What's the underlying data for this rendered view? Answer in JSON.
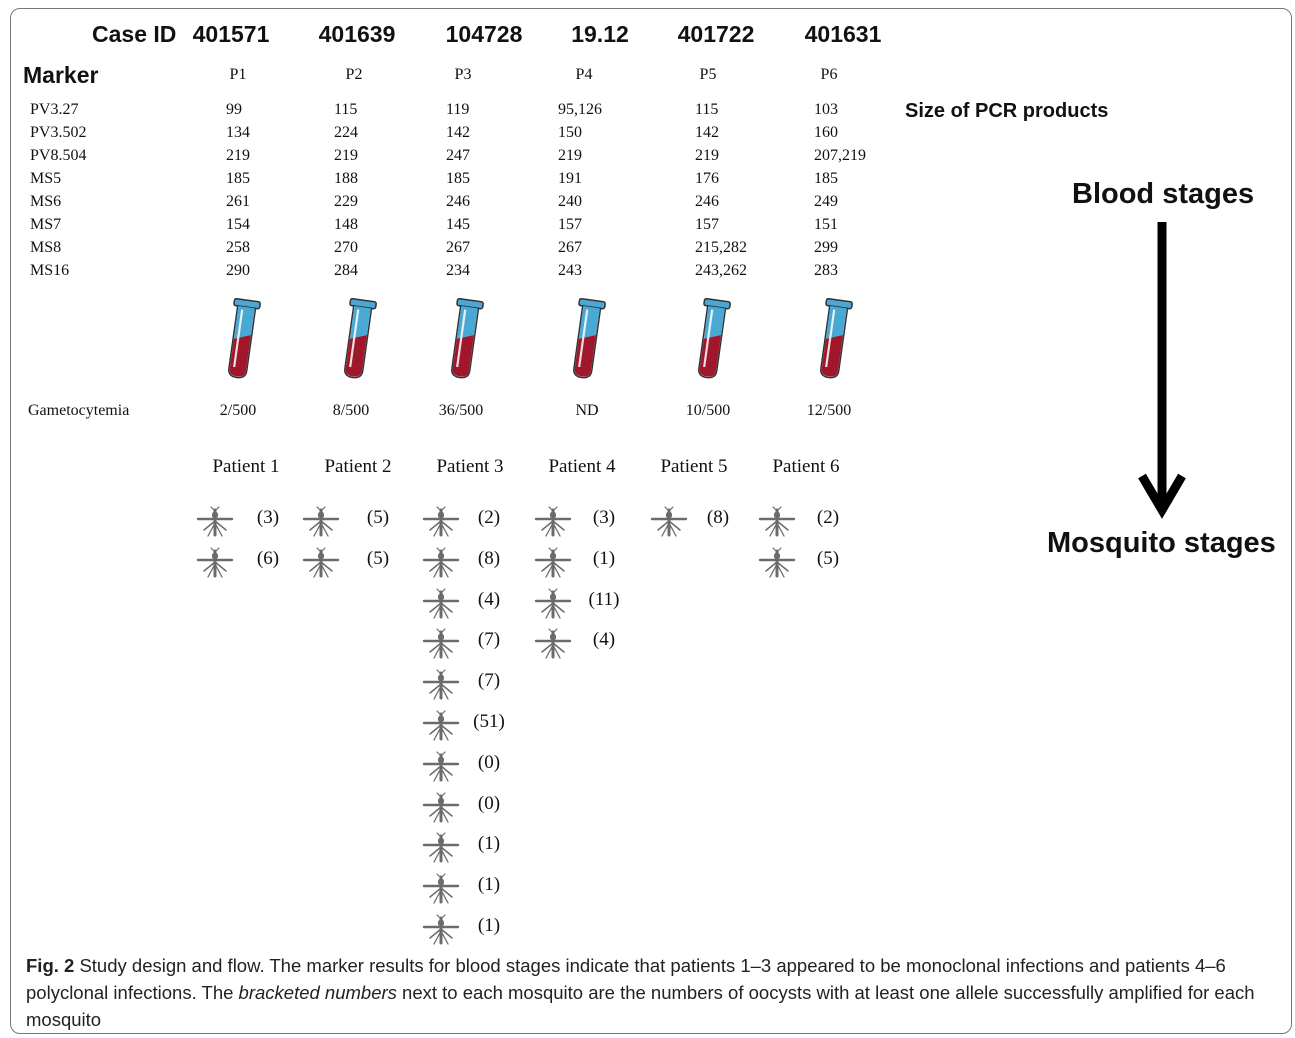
{
  "header": {
    "case_id_label": "Case ID",
    "case_ids": [
      "401571",
      "401639",
      "104728",
      "19.12",
      "401722",
      "401631"
    ],
    "marker_label": "Marker",
    "patient_codes": [
      "P1",
      "P2",
      "P3",
      "P4",
      "P5",
      "P6"
    ]
  },
  "markers": {
    "names": [
      "PV3.27",
      "PV3.502",
      "PV8.504",
      "MS5",
      "MS6",
      "MS7",
      "MS8",
      "MS16"
    ],
    "values": [
      [
        "99",
        "115",
        "119",
        "95,126",
        "115",
        "103"
      ],
      [
        "134",
        "224",
        "142",
        "150",
        "142",
        "160"
      ],
      [
        "219",
        "219",
        "247",
        "219",
        "219",
        "207,219"
      ],
      [
        "185",
        "188",
        "185",
        "191",
        "176",
        "185"
      ],
      [
        "261",
        "229",
        "246",
        "240",
        "246",
        "249"
      ],
      [
        "154",
        "148",
        "145",
        "157",
        "157",
        "151"
      ],
      [
        "258",
        "270",
        "267",
        "267",
        "215,282",
        "299"
      ],
      [
        "290",
        "284",
        "234",
        "243",
        "243,262",
        "283"
      ]
    ],
    "pcr_label": "Size of PCR products"
  },
  "stages": {
    "blood": "Blood stages",
    "mosquito": "Mosquito stages"
  },
  "gametocytemia": {
    "label": "Gametocytemia",
    "values": [
      "2/500",
      "8/500",
      "36/500",
      "ND",
      "10/500",
      "12/500"
    ]
  },
  "patients": {
    "labels": [
      "Patient 1",
      "Patient 2",
      "Patient 3",
      "Patient 4",
      "Patient 5",
      "Patient 6"
    ],
    "mosquito_counts": [
      [
        "(3)",
        "(6)"
      ],
      [
        "(5)",
        "(5)"
      ],
      [
        "(2)",
        "(8)",
        "(4)",
        "(7)",
        "(7)",
        "(51)",
        "(0)",
        "(0)",
        "(1)",
        "(1)",
        "(1)"
      ],
      [
        "(3)",
        "(1)",
        "(11)",
        "(4)"
      ],
      [
        "(8)"
      ],
      [
        "(2)",
        "(5)"
      ]
    ]
  },
  "caption": {
    "fig_label": "Fig. 2",
    "text_1": " Study design and flow. The marker results for blood stages indicate that patients 1–3 appeared to be monoclonal infections and patients 4–6 polyclonal infections. The ",
    "italic": "bracketed numbers",
    "text_2": " next to each mosquito are the numbers of oocysts with at least one allele successfully amplified for each mosquito"
  },
  "colors": {
    "tube_cap": "#4aa9d4",
    "tube_blood": "#a0162a",
    "mosquito": "#6b6b6b",
    "arrow": "#000000"
  }
}
